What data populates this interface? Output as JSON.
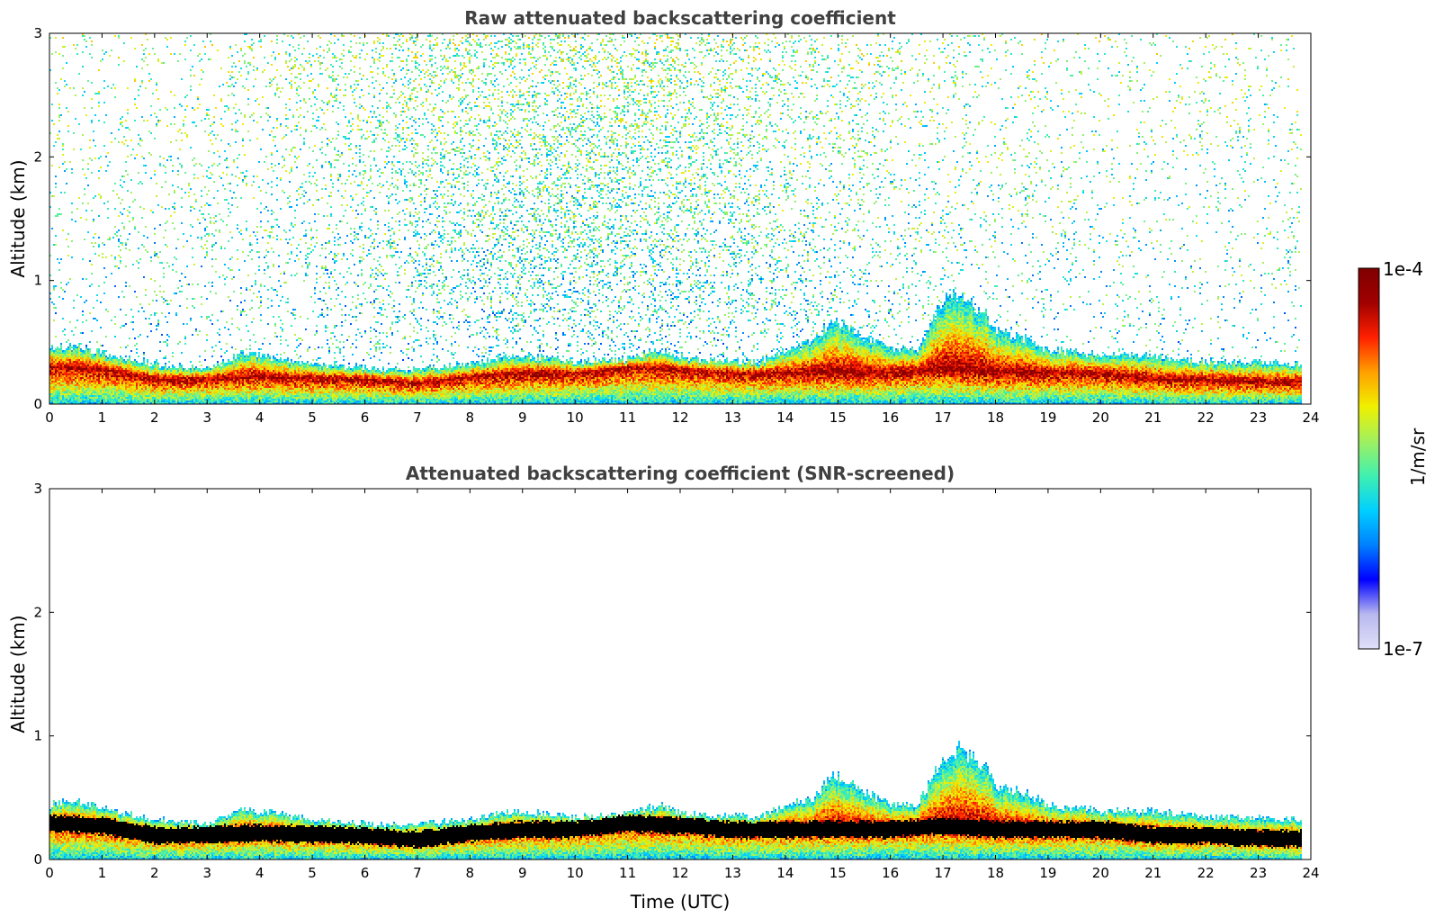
{
  "chart_data": [
    {
      "type": "heatmap",
      "title": "Raw attenuated backscattering coefficient",
      "xlabel": "",
      "ylabel": "Altitude (km)",
      "xlim": [
        0,
        24
      ],
      "ylim": [
        0,
        3
      ],
      "xticks": [
        "0",
        "1",
        "2",
        "3",
        "4",
        "5",
        "6",
        "7",
        "8",
        "9",
        "10",
        "11",
        "12",
        "13",
        "14",
        "15",
        "16",
        "17",
        "18",
        "19",
        "20",
        "21",
        "22",
        "23",
        "24"
      ],
      "yticks": [
        "0",
        "1",
        "2",
        "3"
      ],
      "data_end_hour": 23.8,
      "boundary_layer_top_km": {
        "hour": [
          0,
          0.5,
          1,
          2,
          3,
          3.7,
          4,
          5,
          6,
          6.8,
          7,
          8,
          8.5,
          9,
          10,
          11,
          11.6,
          12,
          13,
          13.5,
          14,
          14.5,
          14.9,
          15.5,
          16,
          16.5,
          17,
          17.3,
          17.8,
          18,
          18.5,
          19,
          20,
          21,
          22,
          23,
          23.8
        ],
        "km": [
          0.45,
          0.48,
          0.42,
          0.33,
          0.3,
          0.42,
          0.4,
          0.33,
          0.3,
          0.28,
          0.3,
          0.33,
          0.38,
          0.4,
          0.35,
          0.38,
          0.45,
          0.38,
          0.36,
          0.35,
          0.45,
          0.5,
          0.7,
          0.55,
          0.45,
          0.45,
          0.85,
          0.9,
          0.75,
          0.6,
          0.55,
          0.45,
          0.4,
          0.4,
          0.35,
          0.35,
          0.33
        ]
      },
      "peak_layer_km": {
        "hour": [
          0,
          1,
          2,
          4,
          6,
          7,
          8,
          9,
          10,
          11,
          12,
          13,
          14,
          15,
          16,
          17,
          18,
          19,
          20,
          21,
          22,
          23,
          23.8
        ],
        "km": [
          0.3,
          0.28,
          0.2,
          0.22,
          0.2,
          0.17,
          0.22,
          0.25,
          0.25,
          0.3,
          0.28,
          0.25,
          0.25,
          0.25,
          0.25,
          0.28,
          0.25,
          0.25,
          0.25,
          0.2,
          0.2,
          0.18,
          0.18
        ]
      },
      "noise_above_layer": true
    },
    {
      "type": "heatmap",
      "title": "Attenuated backscattering coefficient (SNR-screened)",
      "xlabel": "Time (UTC)",
      "ylabel": "Altitude (km)",
      "xlim": [
        0,
        24
      ],
      "ylim": [
        0,
        3
      ],
      "xticks": [
        "0",
        "1",
        "2",
        "3",
        "4",
        "5",
        "6",
        "7",
        "8",
        "9",
        "10",
        "11",
        "12",
        "13",
        "14",
        "15",
        "16",
        "17",
        "18",
        "19",
        "20",
        "21",
        "22",
        "23",
        "24"
      ],
      "yticks": [
        "0",
        "1",
        "2",
        "3"
      ],
      "data_end_hour": 23.8,
      "boundary_layer_top_km": {
        "hour": [
          0,
          0.5,
          1,
          2,
          3,
          3.7,
          4,
          5,
          6,
          6.8,
          7,
          8,
          8.5,
          9,
          10,
          11,
          11.6,
          12,
          13,
          13.5,
          14,
          14.5,
          14.9,
          15.5,
          16,
          16.5,
          17,
          17.3,
          17.8,
          18,
          18.5,
          19,
          20,
          21,
          22,
          23,
          23.8
        ],
        "km": [
          0.45,
          0.48,
          0.42,
          0.33,
          0.3,
          0.42,
          0.4,
          0.33,
          0.3,
          0.28,
          0.3,
          0.33,
          0.38,
          0.4,
          0.35,
          0.38,
          0.45,
          0.38,
          0.36,
          0.35,
          0.45,
          0.5,
          0.7,
          0.55,
          0.45,
          0.45,
          0.85,
          0.9,
          0.75,
          0.6,
          0.55,
          0.45,
          0.4,
          0.4,
          0.35,
          0.35,
          0.33
        ]
      },
      "peak_layer_km": {
        "hour": [
          0,
          1,
          2,
          4,
          6,
          7,
          8,
          9,
          10,
          11,
          12,
          13,
          14,
          15,
          16,
          17,
          18,
          19,
          20,
          21,
          22,
          23,
          23.8
        ],
        "km": [
          0.3,
          0.28,
          0.2,
          0.22,
          0.2,
          0.17,
          0.22,
          0.25,
          0.25,
          0.3,
          0.28,
          0.25,
          0.25,
          0.25,
          0.25,
          0.28,
          0.25,
          0.25,
          0.25,
          0.2,
          0.2,
          0.18,
          0.18
        ]
      },
      "noise_above_layer": false
    }
  ],
  "colorbar": {
    "label": "1/m/sr",
    "max_label": "1e-4",
    "min_label": "1e-7",
    "colormap": "jet",
    "stops": [
      "#e0e0f8",
      "#b8b8f0",
      "#0000ff",
      "#0080ff",
      "#00d0ff",
      "#40f0b0",
      "#a0f060",
      "#f0f000",
      "#ffa000",
      "#ff2000",
      "#a00000",
      "#800000"
    ]
  },
  "colors": {
    "title": "#404040",
    "layer_core_screened": "#000000",
    "axis": "#000000",
    "background": "#ffffff"
  }
}
